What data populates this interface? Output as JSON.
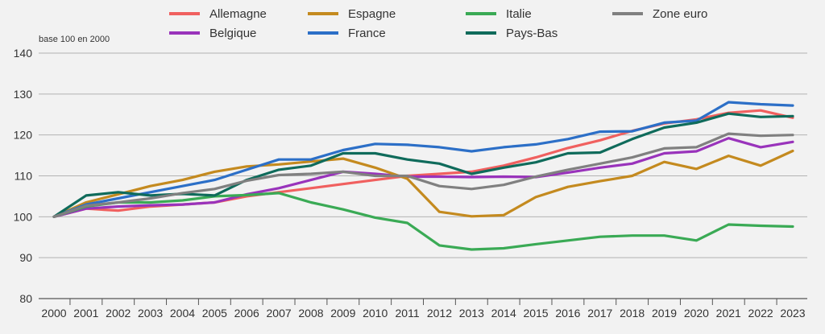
{
  "chart_data": {
    "type": "line",
    "title": "",
    "unit_label": "base 100 en 2000",
    "ylim": [
      80,
      140
    ],
    "yticks": [
      80,
      90,
      100,
      110,
      120,
      130,
      140
    ],
    "grid": true,
    "legend_position": "top",
    "categories": [
      "2000",
      "2001",
      "2002",
      "2003",
      "2004",
      "2005",
      "2006",
      "2007",
      "2008",
      "2009",
      "2010",
      "2011",
      "2012",
      "2013",
      "2014",
      "2015",
      "2016",
      "2017",
      "2018",
      "2019",
      "2020",
      "2021",
      "2022",
      "2023"
    ],
    "series": [
      {
        "name": "Allemagne",
        "color": "#f0605f",
        "values": [
          100,
          102.0,
          101.5,
          102.5,
          103.0,
          103.5,
          105.0,
          106.0,
          107.0,
          108.0,
          109.0,
          110.0,
          110.5,
          111.0,
          112.5,
          114.5,
          116.8,
          118.7,
          121.0,
          122.8,
          123.8,
          125.4,
          126.0,
          124.2
        ]
      },
      {
        "name": "Belgique",
        "color": "#9933bb",
        "values": [
          100,
          102.0,
          102.5,
          102.8,
          103.0,
          103.5,
          105.5,
          107.0,
          109.0,
          111.0,
          110.5,
          109.8,
          109.8,
          109.7,
          109.8,
          109.7,
          110.8,
          112.0,
          113.0,
          115.5,
          116.0,
          119.2,
          117.0,
          118.3
        ]
      },
      {
        "name": "Espagne",
        "color": "#c48a1f",
        "values": [
          100,
          103.5,
          105.5,
          107.5,
          109.0,
          111.0,
          112.3,
          112.8,
          113.5,
          114.2,
          112.0,
          109.3,
          101.2,
          100.1,
          100.4,
          104.8,
          107.3,
          108.7,
          110.0,
          113.4,
          111.7,
          114.9,
          112.5,
          116.1
        ]
      },
      {
        "name": "France",
        "color": "#2c6fc7",
        "values": [
          100,
          103.0,
          104.5,
          106.0,
          107.5,
          109.0,
          111.5,
          114.0,
          114.0,
          116.3,
          117.8,
          117.6,
          117.0,
          116.0,
          117.0,
          117.7,
          119.0,
          120.8,
          120.9,
          123.0,
          123.5,
          128.0,
          127.5,
          127.2
        ]
      },
      {
        "name": "Italie",
        "color": "#3aaa55",
        "values": [
          100,
          102.5,
          103.5,
          103.5,
          104.0,
          105.0,
          105.3,
          105.8,
          103.5,
          101.8,
          99.8,
          98.5,
          93.0,
          92.0,
          92.3,
          93.3,
          94.2,
          95.1,
          95.4,
          95.4,
          94.2,
          98.1,
          97.8,
          97.6
        ]
      },
      {
        "name": "Pays-Bas",
        "color": "#0f6b5b",
        "values": [
          100,
          105.2,
          106.0,
          105.2,
          105.6,
          105.2,
          109.0,
          111.5,
          112.5,
          115.5,
          115.5,
          114.0,
          113.0,
          110.5,
          112.0,
          113.3,
          115.5,
          115.7,
          119.0,
          121.8,
          123.0,
          125.2,
          124.4,
          124.6
        ]
      },
      {
        "name": "Zone euro",
        "color": "#808080",
        "values": [
          100,
          102.7,
          103.5,
          104.5,
          105.8,
          106.8,
          108.8,
          110.2,
          110.5,
          111.0,
          110.0,
          110.0,
          107.5,
          106.8,
          107.8,
          109.8,
          111.5,
          113.0,
          114.5,
          116.7,
          117.0,
          120.3,
          119.8,
          120.0
        ]
      }
    ]
  }
}
